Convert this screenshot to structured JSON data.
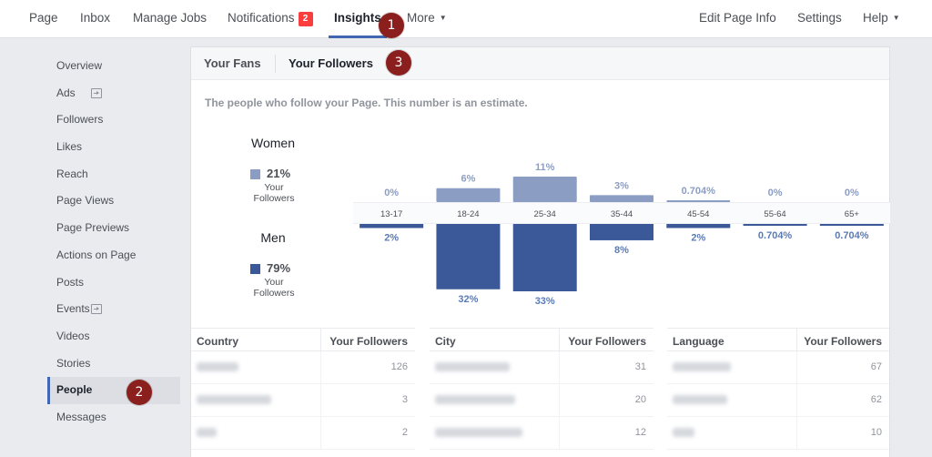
{
  "topnav": {
    "left": [
      {
        "label": "Page"
      },
      {
        "label": "Inbox"
      },
      {
        "label": "Manage Jobs"
      },
      {
        "label": "Notifications",
        "badge": "2"
      },
      {
        "label": "Insights"
      },
      {
        "label": "More"
      }
    ],
    "right": [
      {
        "label": "Edit Page Info"
      },
      {
        "label": "Settings"
      },
      {
        "label": "Help"
      }
    ]
  },
  "steps": [
    "1",
    "2",
    "3"
  ],
  "sidebar": {
    "items": [
      {
        "label": "Overview"
      },
      {
        "label": "Ads",
        "icon": "promote-icon"
      },
      {
        "label": "Followers"
      },
      {
        "label": "Likes"
      },
      {
        "label": "Reach"
      },
      {
        "label": "Page Views"
      },
      {
        "label": "Page Previews"
      },
      {
        "label": "Actions on Page"
      },
      {
        "label": "Posts"
      },
      {
        "label": "Events",
        "icon": "promote-icon"
      },
      {
        "label": "Videos"
      },
      {
        "label": "Stories"
      },
      {
        "label": "People",
        "active": true
      },
      {
        "label": "Messages"
      }
    ]
  },
  "tabs": [
    {
      "label": "Your Fans"
    },
    {
      "label": "Your Followers",
      "active": true
    }
  ],
  "description": "The people who follow your Page. This number is an estimate.",
  "gender": {
    "women": {
      "title": "Women",
      "pct": "21%",
      "sub": "Your Followers",
      "color": "#8b9dc3"
    },
    "men": {
      "title": "Men",
      "pct": "79%",
      "sub": "Your Followers",
      "color": "#3b5998"
    }
  },
  "chart_data": {
    "type": "bar",
    "categories": [
      "13-17",
      "18-24",
      "25-34",
      "35-44",
      "45-54",
      "55-64",
      "65+"
    ],
    "series": [
      {
        "name": "Women",
        "values": [
          0,
          6,
          11,
          3,
          0.704,
          0,
          0
        ],
        "labels": [
          "0%",
          "6%",
          "11%",
          "3%",
          "0.704%",
          "0%",
          "0%"
        ],
        "color": "#8b9dc3"
      },
      {
        "name": "Men",
        "values": [
          2,
          32,
          33,
          8,
          2,
          0.704,
          0.704
        ],
        "labels": [
          "2%",
          "32%",
          "33%",
          "8%",
          "2%",
          "0.704%",
          "0.704%"
        ],
        "color": "#3b5998"
      }
    ]
  },
  "tables": [
    {
      "col1": "Country",
      "col2": "Your Followers",
      "rows": [
        {
          "value": "126"
        },
        {
          "value": "3"
        },
        {
          "value": "2"
        }
      ]
    },
    {
      "col1": "City",
      "col2": "Your Followers",
      "rows": [
        {
          "value": "31"
        },
        {
          "value": "20"
        },
        {
          "value": "12"
        }
      ]
    },
    {
      "col1": "Language",
      "col2": "Your Followers",
      "rows": [
        {
          "value": "67"
        },
        {
          "value": "62"
        },
        {
          "value": "10"
        }
      ]
    }
  ]
}
